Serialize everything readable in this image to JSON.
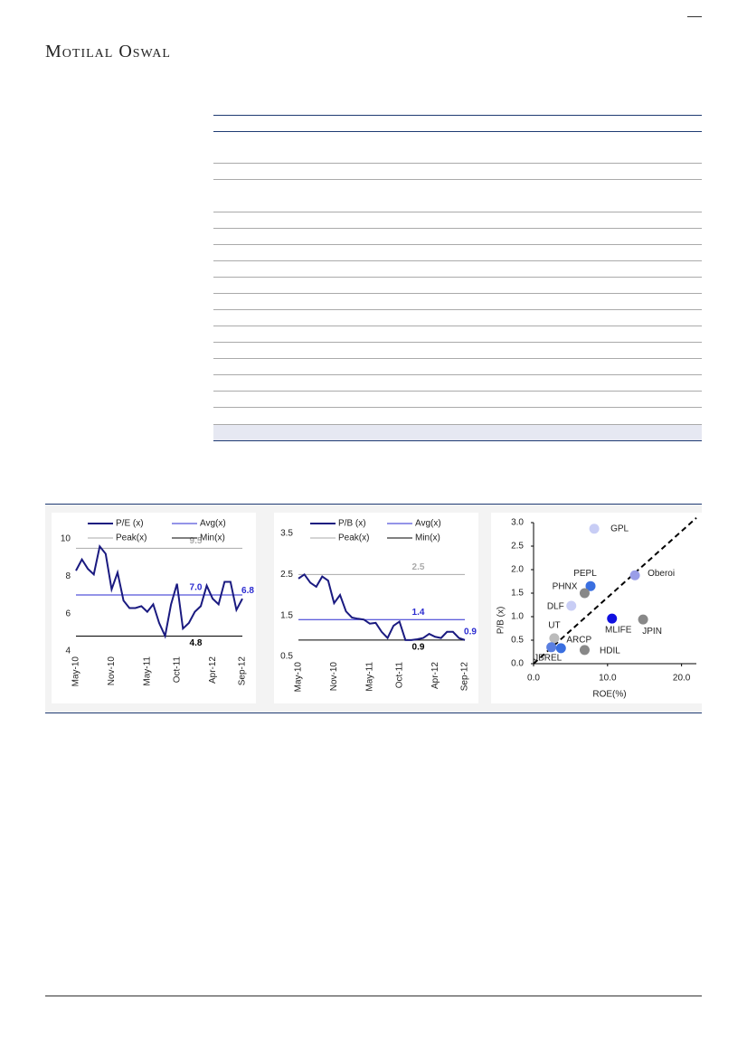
{
  "header": {
    "brand": "Motilal Oswal"
  },
  "chart_data": [
    {
      "type": "line",
      "categories": [
        "May-10",
        null,
        null,
        null,
        null,
        null,
        "Nov-10",
        null,
        null,
        null,
        null,
        null,
        "May-11",
        null,
        null,
        null,
        null,
        "Oct-11",
        null,
        null,
        null,
        null,
        null,
        "Apr-12",
        null,
        null,
        null,
        null,
        "Sep-12"
      ],
      "series": [
        {
          "name": "P/E (x)",
          "color": "#1a1a80",
          "values": [
            8.3,
            8.9,
            8.4,
            8.1,
            9.6,
            9.2,
            7.3,
            8.2,
            6.7,
            6.3,
            6.3,
            6.4,
            6.1,
            6.5,
            5.5,
            4.8,
            6.5,
            7.6,
            5.2,
            5.5,
            6.1,
            6.4,
            7.5,
            6.8,
            6.5,
            7.7,
            7.7,
            6.2,
            6.8
          ]
        }
      ],
      "reference_lines": [
        {
          "name": "Avg(x)",
          "value": 7,
          "label": "7.0",
          "color": "#2a2ad0"
        },
        {
          "name": "Peak(x)",
          "value": 9.5,
          "color": "#aaaaaa"
        },
        {
          "name": "Min(x)",
          "value": 4.8,
          "color": "#000000"
        }
      ],
      "ylim": [
        4,
        10
      ],
      "yticks": [
        4,
        6,
        8,
        10
      ]
    },
    {
      "type": "line",
      "categories": [
        "May-10",
        null,
        null,
        null,
        null,
        null,
        "Nov-10",
        null,
        null,
        null,
        null,
        null,
        "May-11",
        null,
        null,
        null,
        null,
        "Oct-11",
        null,
        null,
        null,
        null,
        null,
        "Apr-12",
        null,
        null,
        null,
        null,
        "Sep-12"
      ],
      "series": [
        {
          "name": "P/B (x)",
          "color": "#1a1a80",
          "values": [
            2.4,
            2.5,
            2.3,
            2.2,
            2.45,
            2.35,
            1.8,
            2.0,
            1.6,
            1.45,
            1.42,
            1.4,
            1.3,
            1.32,
            1.1,
            0.95,
            1.25,
            1.35,
            0.9,
            0.9,
            0.92,
            0.95,
            1.05,
            0.98,
            0.95,
            1.1,
            1.1,
            0.95,
            0.9
          ]
        }
      ],
      "reference_lines": [
        {
          "name": "Avg(x)",
          "value": 1.4,
          "color": "#2a2ad0"
        },
        {
          "name": "Peak(x)",
          "value": 2.5,
          "color": "#aaaaaa"
        },
        {
          "name": "Min(x)",
          "value": 0.9,
          "color": "#000000"
        }
      ],
      "ylim": [
        0.5,
        3.5
      ],
      "yticks": [
        0.5,
        1.5,
        2.5,
        3.5
      ]
    },
    {
      "type": "scatter",
      "x_label": "ROE(%)",
      "y_label": "P/B (x)",
      "points": [
        {
          "name": "GPL",
          "x": 8.2,
          "y": 2.87,
          "color": "#c8cdf5"
        },
        {
          "name": "PEPL",
          "x": 7.7,
          "y": 1.65,
          "color": "#3a6fe0"
        },
        {
          "name": "Oberoi",
          "x": 13.7,
          "y": 1.88,
          "color": "#9a9ee8"
        },
        {
          "name": "PHNX",
          "x": 6.9,
          "y": 1.5,
          "color": "#888888"
        },
        {
          "name": "DLF",
          "x": 5.1,
          "y": 1.23,
          "color": "#c8cdf5"
        },
        {
          "name": "MLIFE",
          "x": 10.6,
          "y": 0.96,
          "color": "#1010e0"
        },
        {
          "name": "JPIN",
          "x": 14.8,
          "y": 0.94,
          "color": "#888888"
        },
        {
          "name": "UT",
          "x": 2.8,
          "y": 0.54,
          "color": "#bbbbbb"
        },
        {
          "name": "ARCP",
          "x": 3.7,
          "y": 0.33,
          "color": "#3a6fe0"
        },
        {
          "name": "JBREL",
          "x": 2.4,
          "y": 0.35,
          "color": "#5a7fe0"
        },
        {
          "name": "HDIL",
          "x": 6.9,
          "y": 0.29,
          "color": "#888888"
        }
      ],
      "trend_line": {
        "x": [
          0,
          22
        ],
        "y": [
          0,
          3.1
        ]
      },
      "xlim": [
        0,
        22
      ],
      "xticks": [
        {
          "value": 0,
          "label": "0.0"
        },
        {
          "value": 10,
          "label": "10.0"
        },
        {
          "value": 20,
          "label": "20.0"
        }
      ],
      "ylim": [
        0,
        3
      ],
      "yticks": [
        {
          "value": 0,
          "label": "0.0"
        },
        {
          "value": 0.5,
          "label": "0.5"
        },
        {
          "value": 1,
          "label": "1.0"
        },
        {
          "value": 1.5,
          "label": "1.5"
        },
        {
          "value": 2,
          "label": "2.0"
        },
        {
          "value": 2.5,
          "label": "2.5"
        },
        {
          "value": 3,
          "label": "3.0"
        }
      ]
    }
  ]
}
